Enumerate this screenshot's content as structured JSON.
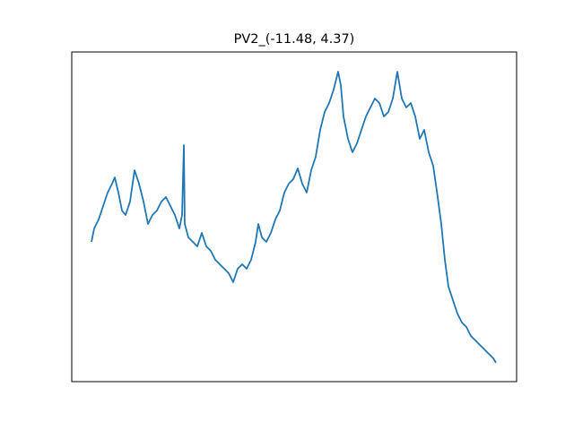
{
  "chart_data": {
    "type": "line",
    "title": "PV2_(-11.48, 4.37)",
    "x": [
      22,
      25,
      30,
      35,
      40,
      45,
      48,
      52,
      56,
      60,
      65,
      70,
      75,
      80,
      85,
      90,
      95,
      100,
      105,
      110,
      115,
      120,
      123,
      125,
      126,
      130,
      135,
      140,
      145,
      150,
      155,
      160,
      165,
      170,
      175,
      180,
      185,
      190,
      195,
      200,
      205,
      208,
      212,
      217,
      222,
      227,
      232,
      237,
      242,
      247,
      252,
      257,
      262,
      267,
      272,
      277,
      282,
      287,
      292,
      297,
      300,
      303,
      308,
      313,
      318,
      323,
      328,
      333,
      338,
      343,
      348,
      353,
      358,
      363,
      368,
      373,
      378,
      383,
      388,
      393,
      398,
      403,
      408,
      412,
      416,
      420,
      425,
      430,
      435,
      440,
      445,
      450,
      455,
      460,
      465,
      470,
      473
    ],
    "values": [
      156,
      171,
      181,
      196,
      211,
      221,
      228,
      211,
      191,
      186,
      201,
      236,
      221,
      201,
      176,
      186,
      191,
      201,
      206,
      196,
      186,
      171,
      186,
      264,
      176,
      161,
      156,
      151,
      166,
      151,
      146,
      136,
      131,
      126,
      121,
      111,
      126,
      131,
      126,
      136,
      156,
      176,
      161,
      156,
      166,
      181,
      191,
      211,
      221,
      226,
      238,
      221,
      211,
      236,
      251,
      281,
      301,
      311,
      326,
      346,
      331,
      296,
      271,
      256,
      266,
      281,
      296,
      306,
      316,
      311,
      296,
      301,
      316,
      346,
      316,
      306,
      311,
      296,
      271,
      281,
      256,
      241,
      206,
      176,
      136,
      106,
      91,
      76,
      66,
      61,
      51,
      46,
      41,
      36,
      31,
      26,
      21
    ],
    "color": "#1f77b4",
    "xlim": [
      0,
      496
    ],
    "ylim": [
      0,
      368
    ]
  }
}
